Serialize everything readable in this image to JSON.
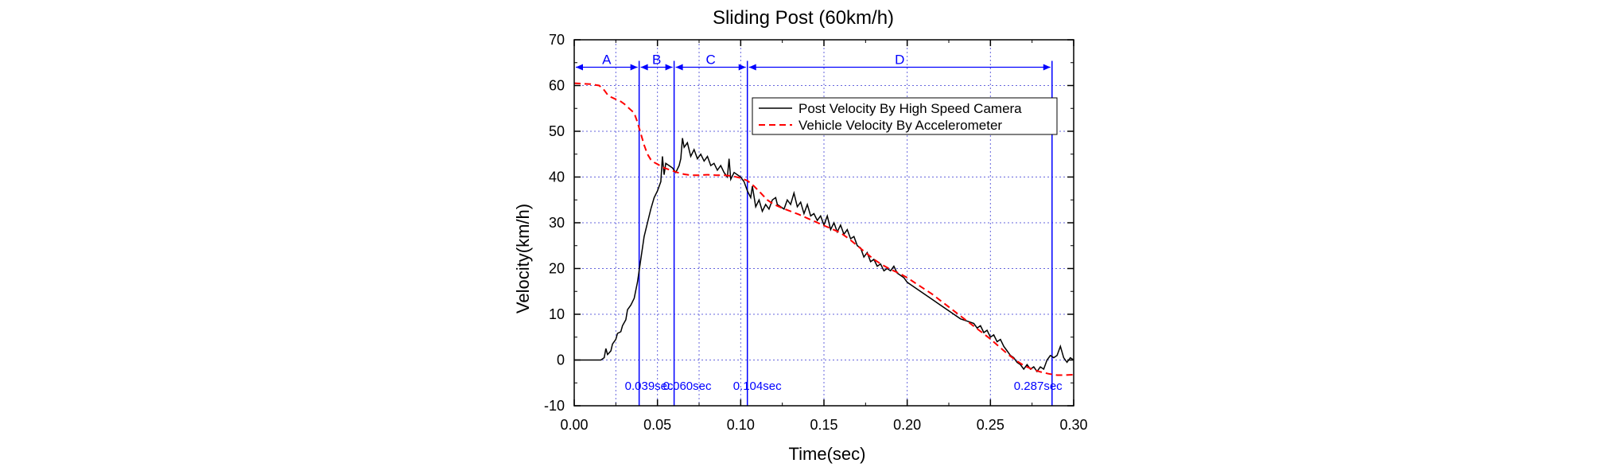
{
  "chart_data": {
    "type": "line",
    "title": "Sliding Post (60km/h)",
    "xlabel": "Time(sec)",
    "ylabel": "Velocity(km/h)",
    "xlim": [
      0.0,
      0.3
    ],
    "ylim": [
      -10,
      70
    ],
    "x_ticks": [
      0.0,
      0.05,
      0.1,
      0.15,
      0.2,
      0.25,
      0.3
    ],
    "x_tick_labels": [
      "0.00",
      "0.05",
      "0.10",
      "0.15",
      "0.20",
      "0.25",
      "0.30"
    ],
    "y_ticks": [
      -10,
      0,
      10,
      20,
      30,
      40,
      50,
      60,
      70
    ],
    "y_tick_labels": [
      "-10",
      "0",
      "10",
      "20",
      "30",
      "40",
      "50",
      "60",
      "70"
    ],
    "grid": true,
    "legend_position": "top-right",
    "series": [
      {
        "name": "Post Velocity By High Speed Camera",
        "color": "#000000",
        "style": "solid",
        "points": [
          [
            0.0,
            0.0
          ],
          [
            0.01,
            0.0
          ],
          [
            0.016,
            0.0
          ],
          [
            0.018,
            0.5
          ],
          [
            0.019,
            2.5
          ],
          [
            0.02,
            1.2
          ],
          [
            0.022,
            2.0
          ],
          [
            0.023,
            3.5
          ],
          [
            0.025,
            4.5
          ],
          [
            0.026,
            5.8
          ],
          [
            0.028,
            6.2
          ],
          [
            0.029,
            7.5
          ],
          [
            0.031,
            8.8
          ],
          [
            0.032,
            11.0
          ],
          [
            0.034,
            12.0
          ],
          [
            0.036,
            13.5
          ],
          [
            0.038,
            17.0
          ],
          [
            0.04,
            22.0
          ],
          [
            0.042,
            27.0
          ],
          [
            0.044,
            30.0
          ],
          [
            0.046,
            33.0
          ],
          [
            0.048,
            35.5
          ],
          [
            0.05,
            37.0
          ],
          [
            0.052,
            39.0
          ],
          [
            0.053,
            44.5
          ],
          [
            0.054,
            40.5
          ],
          [
            0.055,
            43.0
          ],
          [
            0.057,
            42.5
          ],
          [
            0.059,
            42.0
          ],
          [
            0.061,
            41.0
          ],
          [
            0.063,
            42.5
          ],
          [
            0.064,
            44.0
          ],
          [
            0.065,
            48.5
          ],
          [
            0.066,
            46.5
          ],
          [
            0.068,
            47.5
          ],
          [
            0.07,
            44.5
          ],
          [
            0.072,
            46.0
          ],
          [
            0.074,
            44.0
          ],
          [
            0.076,
            45.0
          ],
          [
            0.078,
            43.5
          ],
          [
            0.08,
            44.5
          ],
          [
            0.082,
            42.5
          ],
          [
            0.084,
            43.0
          ],
          [
            0.086,
            41.5
          ],
          [
            0.088,
            42.5
          ],
          [
            0.09,
            41.0
          ],
          [
            0.092,
            40.0
          ],
          [
            0.093,
            44.0
          ],
          [
            0.094,
            39.5
          ],
          [
            0.096,
            41.0
          ],
          [
            0.098,
            40.5
          ],
          [
            0.1,
            40.0
          ],
          [
            0.102,
            39.0
          ],
          [
            0.104,
            37.0
          ],
          [
            0.106,
            35.5
          ],
          [
            0.107,
            38.0
          ],
          [
            0.109,
            33.5
          ],
          [
            0.111,
            35.0
          ],
          [
            0.113,
            32.5
          ],
          [
            0.115,
            34.0
          ],
          [
            0.117,
            33.0
          ],
          [
            0.119,
            35.0
          ],
          [
            0.121,
            35.5
          ],
          [
            0.122,
            34.0
          ],
          [
            0.124,
            33.5
          ],
          [
            0.126,
            33.0
          ],
          [
            0.128,
            35.0
          ],
          [
            0.13,
            34.0
          ],
          [
            0.132,
            36.5
          ],
          [
            0.134,
            33.5
          ],
          [
            0.136,
            34.5
          ],
          [
            0.138,
            32.0
          ],
          [
            0.14,
            34.0
          ],
          [
            0.142,
            31.5
          ],
          [
            0.144,
            32.0
          ],
          [
            0.146,
            30.5
          ],
          [
            0.148,
            31.5
          ],
          [
            0.15,
            29.5
          ],
          [
            0.152,
            31.5
          ],
          [
            0.154,
            28.5
          ],
          [
            0.156,
            30.0
          ],
          [
            0.158,
            28.0
          ],
          [
            0.16,
            29.5
          ],
          [
            0.162,
            27.5
          ],
          [
            0.164,
            28.5
          ],
          [
            0.166,
            26.5
          ],
          [
            0.168,
            27.0
          ],
          [
            0.17,
            25.0
          ],
          [
            0.172,
            24.5
          ],
          [
            0.174,
            22.5
          ],
          [
            0.176,
            23.5
          ],
          [
            0.178,
            21.5
          ],
          [
            0.18,
            22.0
          ],
          [
            0.182,
            20.5
          ],
          [
            0.184,
            21.0
          ],
          [
            0.186,
            19.5
          ],
          [
            0.188,
            20.0
          ],
          [
            0.19,
            19.5
          ],
          [
            0.192,
            20.5
          ],
          [
            0.194,
            19.0
          ],
          [
            0.196,
            18.5
          ],
          [
            0.198,
            18.0
          ],
          [
            0.2,
            17.0
          ],
          [
            0.204,
            16.0
          ],
          [
            0.208,
            15.0
          ],
          [
            0.212,
            14.0
          ],
          [
            0.216,
            13.0
          ],
          [
            0.22,
            12.0
          ],
          [
            0.224,
            11.0
          ],
          [
            0.228,
            10.0
          ],
          [
            0.232,
            9.0
          ],
          [
            0.236,
            8.5
          ],
          [
            0.24,
            8.0
          ],
          [
            0.242,
            7.0
          ],
          [
            0.244,
            7.5
          ],
          [
            0.246,
            6.0
          ],
          [
            0.248,
            6.5
          ],
          [
            0.25,
            5.0
          ],
          [
            0.252,
            5.5
          ],
          [
            0.254,
            4.0
          ],
          [
            0.256,
            4.5
          ],
          [
            0.258,
            3.0
          ],
          [
            0.26,
            2.0
          ],
          [
            0.262,
            1.0
          ],
          [
            0.264,
            0.5
          ],
          [
            0.266,
            -0.5
          ],
          [
            0.268,
            -1.0
          ],
          [
            0.27,
            -2.0
          ],
          [
            0.272,
            -1.0
          ],
          [
            0.274,
            -2.0
          ],
          [
            0.276,
            -1.5
          ],
          [
            0.278,
            -2.5
          ],
          [
            0.28,
            -1.5
          ],
          [
            0.282,
            -2.0
          ],
          [
            0.284,
            0.0
          ],
          [
            0.286,
            1.0
          ],
          [
            0.288,
            0.5
          ],
          [
            0.29,
            1.0
          ],
          [
            0.292,
            3.0
          ],
          [
            0.294,
            0.5
          ],
          [
            0.296,
            -0.5
          ],
          [
            0.298,
            0.5
          ],
          [
            0.3,
            0.0
          ]
        ]
      },
      {
        "name": "Vehicle Velocity By Accelerometer",
        "color": "#ff0000",
        "style": "dashed",
        "points": [
          [
            0.0,
            60.5
          ],
          [
            0.01,
            60.3
          ],
          [
            0.015,
            60.0
          ],
          [
            0.018,
            59.0
          ],
          [
            0.02,
            58.0
          ],
          [
            0.022,
            57.5
          ],
          [
            0.025,
            57.0
          ],
          [
            0.028,
            56.5
          ],
          [
            0.03,
            56.0
          ],
          [
            0.033,
            55.0
          ],
          [
            0.036,
            54.0
          ],
          [
            0.038,
            52.0
          ],
          [
            0.04,
            49.5
          ],
          [
            0.042,
            47.0
          ],
          [
            0.044,
            45.0
          ],
          [
            0.046,
            43.8
          ],
          [
            0.048,
            43.2
          ],
          [
            0.05,
            42.8
          ],
          [
            0.054,
            42.0
          ],
          [
            0.058,
            41.5
          ],
          [
            0.062,
            41.0
          ],
          [
            0.066,
            40.6
          ],
          [
            0.07,
            40.4
          ],
          [
            0.075,
            40.4
          ],
          [
            0.08,
            40.5
          ],
          [
            0.085,
            40.4
          ],
          [
            0.09,
            40.4
          ],
          [
            0.095,
            40.2
          ],
          [
            0.1,
            39.8
          ],
          [
            0.104,
            39.2
          ],
          [
            0.108,
            38.0
          ],
          [
            0.112,
            36.5
          ],
          [
            0.116,
            35.0
          ],
          [
            0.12,
            34.0
          ],
          [
            0.125,
            33.2
          ],
          [
            0.13,
            32.5
          ],
          [
            0.135,
            31.8
          ],
          [
            0.14,
            31.0
          ],
          [
            0.145,
            30.2
          ],
          [
            0.15,
            29.4
          ],
          [
            0.155,
            28.6
          ],
          [
            0.16,
            27.8
          ],
          [
            0.165,
            26.5
          ],
          [
            0.17,
            25.0
          ],
          [
            0.175,
            23.5
          ],
          [
            0.18,
            22.0
          ],
          [
            0.185,
            20.8
          ],
          [
            0.19,
            19.8
          ],
          [
            0.195,
            19.0
          ],
          [
            0.2,
            18.0
          ],
          [
            0.205,
            16.8
          ],
          [
            0.21,
            15.6
          ],
          [
            0.215,
            14.4
          ],
          [
            0.22,
            13.0
          ],
          [
            0.225,
            11.6
          ],
          [
            0.23,
            10.2
          ],
          [
            0.235,
            8.8
          ],
          [
            0.24,
            7.4
          ],
          [
            0.245,
            6.0
          ],
          [
            0.25,
            4.6
          ],
          [
            0.255,
            3.0
          ],
          [
            0.26,
            1.4
          ],
          [
            0.265,
            0.0
          ],
          [
            0.27,
            -1.2
          ],
          [
            0.275,
            -2.0
          ],
          [
            0.28,
            -2.6
          ],
          [
            0.285,
            -3.0
          ],
          [
            0.29,
            -3.3
          ],
          [
            0.295,
            -3.3
          ],
          [
            0.3,
            -3.2
          ]
        ]
      }
    ],
    "vertical_markers": [
      {
        "x": 0.039,
        "label": "0.039sec"
      },
      {
        "x": 0.06,
        "label": "0.060sec"
      },
      {
        "x": 0.104,
        "label": "0.104sec"
      },
      {
        "x": 0.287,
        "label": "0.287sec"
      }
    ],
    "grid_verticals_extra": [
      0.025,
      0.075
    ],
    "phases": [
      {
        "label": "A",
        "start": 0.0,
        "end": 0.039
      },
      {
        "label": "B",
        "start": 0.039,
        "end": 0.06
      },
      {
        "label": "C",
        "start": 0.06,
        "end": 0.104
      },
      {
        "label": "D",
        "start": 0.104,
        "end": 0.287
      }
    ],
    "phase_arrow_y": 64,
    "colors": {
      "marker": "#0000ff",
      "grid": "#6666dd"
    }
  }
}
